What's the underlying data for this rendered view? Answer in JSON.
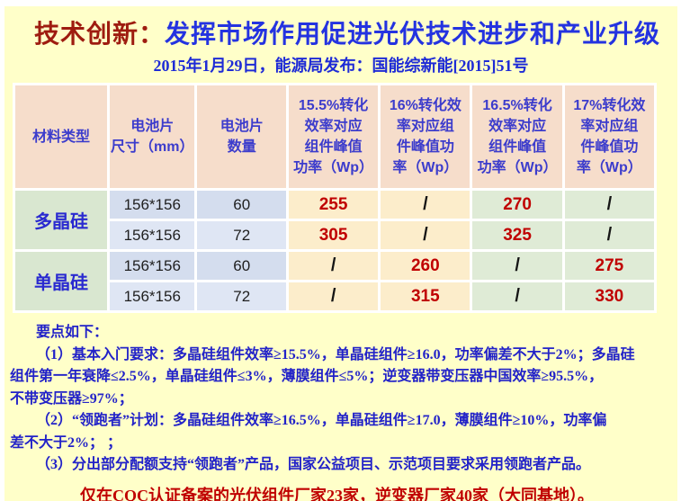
{
  "slide": {
    "title_prefix": "技术创新：",
    "title_main": "发挥市场作用促进光伏技术进步和产业升级",
    "subtitle": "2015年1月29日，能源局发布：国能综新能[2015]51号"
  },
  "table": {
    "headers": [
      {
        "lines": [
          "材料类型"
        ]
      },
      {
        "lines": [
          "电池片",
          "尺寸（mm）"
        ]
      },
      {
        "lines": [
          "电池片",
          "数量"
        ]
      },
      {
        "lines": [
          "15.5%转化",
          "效率对应",
          "组件峰值",
          "功率（Wp）"
        ]
      },
      {
        "lines": [
          "16%转化效",
          "率对应组",
          "件峰值功",
          "率（Wp）"
        ]
      },
      {
        "lines": [
          "16.5%转化",
          "效率对应",
          "组件峰值",
          "功率（Wp）"
        ]
      },
      {
        "lines": [
          "17%转化效",
          "率对应组",
          "件峰值功",
          "率（Wp）"
        ]
      }
    ],
    "groups": [
      {
        "material": "多晶硅",
        "rows": [
          {
            "size": "156*156",
            "count": "60",
            "values": [
              "255",
              "/",
              "270",
              "/"
            ]
          },
          {
            "size": "156*156",
            "count": "72",
            "values": [
              "305",
              "/",
              "325",
              "/"
            ]
          }
        ]
      },
      {
        "material": "单晶硅",
        "rows": [
          {
            "size": "156*156",
            "count": "60",
            "values": [
              "/",
              "260",
              "/",
              "275"
            ]
          },
          {
            "size": "156*156",
            "count": "72",
            "values": [
              "/",
              "315",
              "/",
              "330"
            ]
          }
        ]
      }
    ]
  },
  "notes": {
    "lines": [
      "要点如下：",
      "（1）基本入门要求：多晶硅组件效率≥15.5%，单晶硅组件≥16.0，功率偏差不大于2%；多晶硅",
      "组件第一年衰降≤2.5%，单晶硅组件≤3%，薄膜组件≤5%；逆变器带变压器中国效率≥95.5%，",
      "不带变压器≥97%；",
      "（2）“领跑者”计划：多晶硅组件效率≥16.5%，单晶硅组件≥17.0，薄膜组件≥10%，功率偏",
      "差不大于2%； ；",
      "（3）分出部分配额支持“领跑者”产品，国家公益项目、示范项目要求采用领跑者产品。"
    ]
  },
  "footer": {
    "text": "仅在CQC认证备案的光伏组件厂家23家，逆变器厂家40家（大同基地）。"
  },
  "colors": {
    "page_background": "#FFFFC9",
    "title_red": "#9E1C10",
    "title_blue": "#2433E0",
    "header_cell_bg": "#F6DDCB",
    "header_text": "#3C3CCC",
    "material_cell_bg": "#D9E7D0",
    "spec_cell_bg_dark": "#D4DDEE",
    "spec_cell_bg_light": "#DFE6F4",
    "cream_cell_bg": "#FCEDCB",
    "green_cell_bg": "#DFEBD6",
    "value_red": "#C00000",
    "notes_blue": "#2222C8"
  }
}
